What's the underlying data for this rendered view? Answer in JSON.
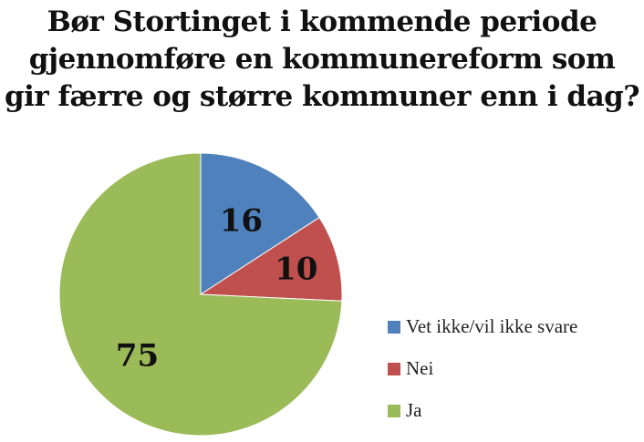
{
  "chart_data": {
    "type": "pie",
    "title_lines": [
      "Bør Stortinget i kommende periode",
      "gjennomføre en kommunereform som",
      "gir færre og større kommuner enn i dag?"
    ],
    "slices": [
      {
        "name": "Vet ikke/vil ikke svare",
        "value": 16,
        "label": "16",
        "color": "#4f81bd"
      },
      {
        "name": "Nei",
        "value": 10,
        "label": "10",
        "color": "#c0504d"
      },
      {
        "name": "Ja",
        "value": 75,
        "label": "75",
        "color": "#9bbb59"
      }
    ],
    "legend_position": "right",
    "start_angle": "12 o'clock",
    "direction": "clockwise"
  }
}
